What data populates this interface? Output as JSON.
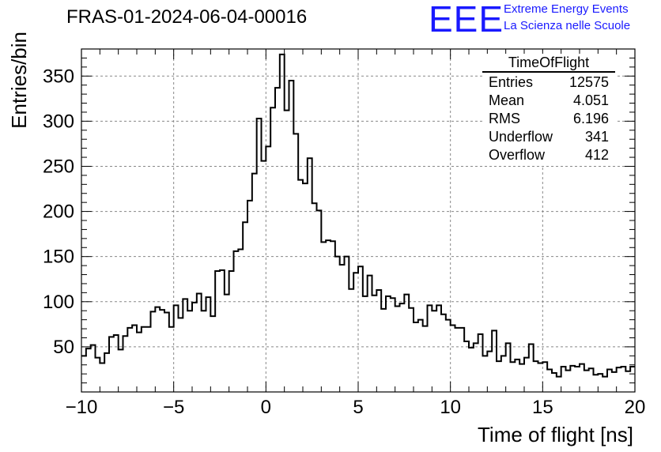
{
  "header": {
    "title": "FRAS-01-2024-06-04-00016",
    "logo_text": "EEE",
    "logo_line1": "Extreme Energy Events",
    "logo_line2": "La Scienza nelle Scuole",
    "logo_color": "#1a1aff"
  },
  "stats": {
    "name": "TimeOfFlight",
    "rows": [
      {
        "label": "Entries",
        "value": "12575"
      },
      {
        "label": "Mean",
        "value": "4.051"
      },
      {
        "label": "RMS",
        "value": "6.196"
      },
      {
        "label": "Underflow",
        "value": "341"
      },
      {
        "label": "Overflow",
        "value": "412"
      }
    ]
  },
  "chart_data": {
    "type": "bar",
    "histogram": true,
    "title": "FRAS-01-2024-06-04-00016",
    "xlabel": "Time of flight [ns]",
    "ylabel": "Entries/bin",
    "xlim": [
      -10,
      20
    ],
    "ylim": [
      0,
      375
    ],
    "bin_width": 0.25,
    "grid": true,
    "xticks": [
      -10,
      -5,
      0,
      5,
      10,
      15,
      20
    ],
    "xtick_labels": [
      "−10",
      "−5",
      "0",
      "5",
      "10",
      "15",
      "20"
    ],
    "yticks": [
      50,
      100,
      150,
      200,
      250,
      300,
      350
    ],
    "values": [
      40,
      48,
      52,
      38,
      32,
      43,
      61,
      63,
      47,
      62,
      71,
      74,
      66,
      72,
      72,
      89,
      94,
      91,
      88,
      72,
      96,
      82,
      103,
      90,
      99,
      109,
      90,
      105,
      84,
      134,
      135,
      108,
      134,
      156,
      158,
      188,
      212,
      242,
      303,
      256,
      272,
      315,
      337,
      374,
      312,
      345,
      286,
      235,
      231,
      259,
      209,
      201,
      166,
      168,
      167,
      150,
      141,
      150,
      114,
      132,
      139,
      106,
      129,
      107,
      113,
      92,
      106,
      104,
      95,
      98,
      108,
      93,
      77,
      80,
      73,
      96,
      90,
      96,
      86,
      80,
      74,
      71,
      71,
      56,
      49,
      54,
      64,
      40,
      45,
      68,
      34,
      40,
      54,
      33,
      36,
      31,
      38,
      53,
      34,
      32,
      33,
      25,
      21,
      17,
      28,
      24,
      29,
      28,
      31,
      24,
      26,
      19,
      20,
      17,
      25,
      22,
      27,
      28,
      23,
      28
    ]
  }
}
